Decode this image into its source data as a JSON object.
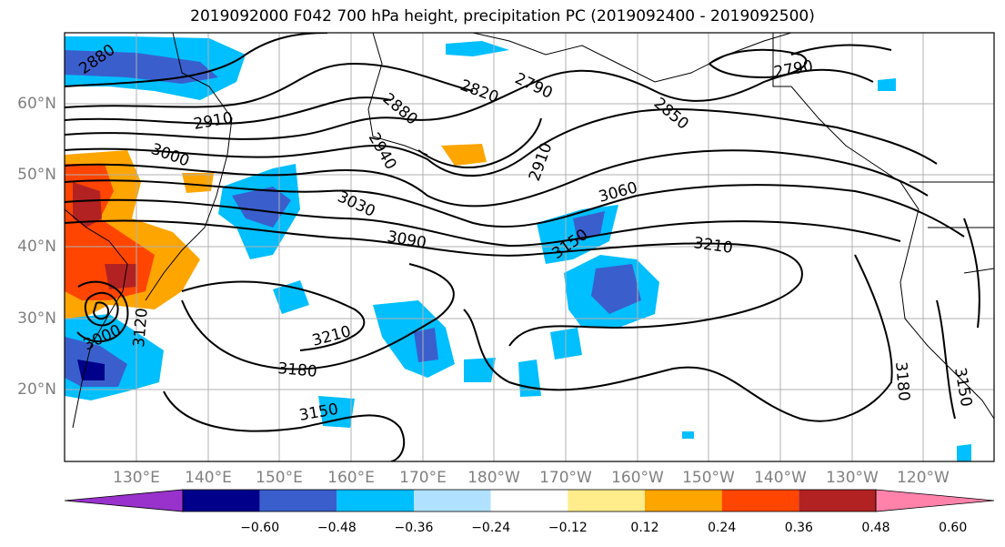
{
  "title": "2019092000 F042 700 hPa height, precipitation PC (2019092400 - 2019092500)",
  "map": {
    "lat_labels": [
      "60°N",
      "50°N",
      "40°N",
      "30°N",
      "20°N"
    ],
    "lon_labels": [
      "130°E",
      "140°E",
      "150°E",
      "160°E",
      "170°E",
      "180°W",
      "170°W",
      "160°W",
      "150°W",
      "140°W",
      "130°W",
      "120°W"
    ],
    "contour_labels": [
      "2880",
      "2910",
      "3000",
      "2820",
      "2790",
      "2880",
      "2850",
      "2940",
      "2910",
      "3030",
      "3060",
      "3090",
      "3150",
      "3210",
      "3210",
      "3180",
      "3150",
      "3180",
      "3150",
      "3000",
      "3120",
      "2790"
    ]
  },
  "colorbar": {
    "tick_labels": [
      "−0.60",
      "−0.48",
      "−0.36",
      "−0.24",
      "−0.12",
      "0.12",
      "0.24",
      "0.36",
      "0.48",
      "0.60"
    ],
    "colors": [
      "#9932cc",
      "#00008b",
      "#3a5fcd",
      "#00bfff",
      "#b0e2ff",
      "#ffffff",
      "#ffec8b",
      "#ffa500",
      "#ff4500",
      "#b22222",
      "#ff82ab"
    ]
  }
}
